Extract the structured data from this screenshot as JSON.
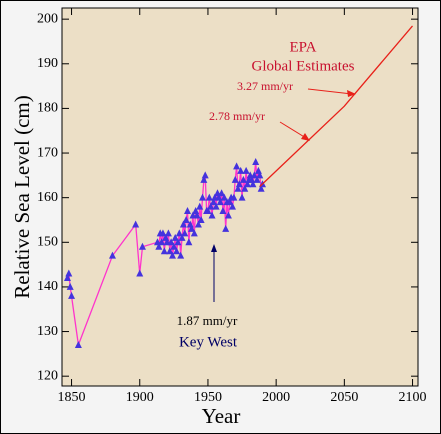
{
  "chart_data": {
    "type": "line",
    "xlabel": "Year",
    "ylabel": "Relative Sea Level (cm)",
    "xlim": [
      1843,
      2104
    ],
    "ylim": [
      117.8,
      202.5
    ],
    "xticks": [
      1850,
      1900,
      1950,
      2000,
      2050,
      2100
    ],
    "yticks": [
      120,
      130,
      140,
      150,
      160,
      170,
      180,
      190,
      200
    ],
    "series": [
      {
        "color": "#ff33cc",
        "marker_color": "#4433dd",
        "marker": "triangle",
        "x": [
          1847,
          1848,
          1849,
          1850,
          1855,
          1880,
          1897,
          1900,
          1902,
          1913,
          1914,
          1915,
          1916,
          1917,
          1918,
          1919,
          1920,
          1921,
          1922,
          1923,
          1924,
          1925,
          1926,
          1927,
          1928,
          1929,
          1930,
          1931,
          1932,
          1933,
          1934,
          1935,
          1936,
          1937,
          1938,
          1939,
          1940,
          1941,
          1942,
          1943,
          1944,
          1945,
          1946,
          1947,
          1948,
          1949,
          1950,
          1951,
          1952,
          1953,
          1954,
          1955,
          1956,
          1957,
          1958,
          1959,
          1960,
          1961,
          1962,
          1963,
          1964,
          1965,
          1966,
          1967,
          1968,
          1969,
          1970,
          1971,
          1972,
          1973,
          1974,
          1975,
          1976,
          1977,
          1978,
          1979,
          1980,
          1981,
          1982,
          1983,
          1984,
          1985,
          1986,
          1987,
          1988,
          1989,
          1990
        ],
        "values": [
          142,
          143,
          140,
          138,
          127,
          147,
          154,
          143,
          149,
          150,
          149,
          152,
          150,
          152,
          148,
          151,
          150,
          152,
          148,
          150,
          147,
          149,
          151,
          148,
          150,
          152,
          147,
          151,
          154,
          152,
          155,
          157,
          150,
          154,
          153,
          156,
          152,
          157,
          156,
          154,
          158,
          155,
          160,
          164,
          165,
          157,
          157,
          160,
          158,
          156,
          159,
          160,
          158,
          161,
          160,
          159,
          161,
          157,
          160,
          153,
          159,
          156,
          159,
          160,
          158,
          160,
          164,
          167,
          162,
          163,
          166,
          160,
          164,
          162,
          166,
          163,
          164,
          165,
          164,
          163,
          165,
          168,
          164,
          166,
          165,
          162,
          163
        ]
      },
      {
        "color": "#e8211a",
        "x": [
          1988,
          2050,
          2100
        ],
        "values": [
          162.5,
          180.5,
          198.5
        ]
      }
    ],
    "annotations": [
      {
        "text": "EPA",
        "color": "#c8102e"
      },
      {
        "text": "Global Estimates",
        "color": "#c8102e"
      },
      {
        "text": "3.27 mm/yr",
        "color": "#c8102e"
      },
      {
        "text": "2.78 mm/yr",
        "color": "#c8102e"
      },
      {
        "text": "1.87 mm/yr",
        "color": "#000000"
      },
      {
        "text": "Key West",
        "color": "#000066"
      }
    ]
  }
}
